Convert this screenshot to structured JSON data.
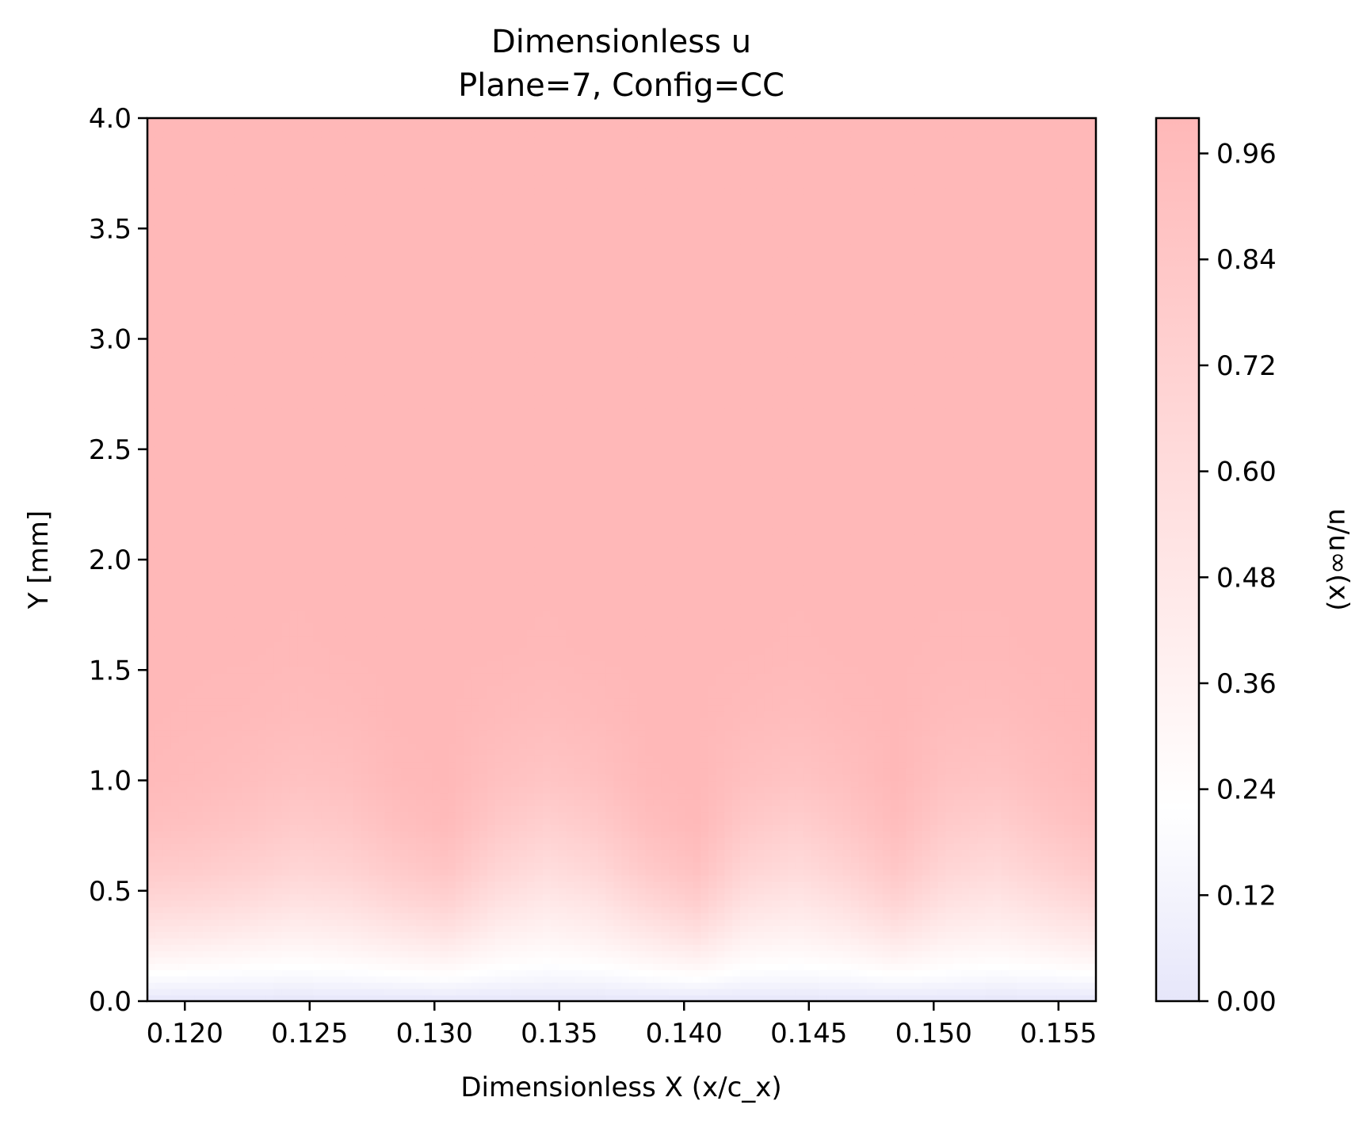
{
  "chart_data": {
    "type": "heatmap",
    "title": "Dimensionless u",
    "subtitle": "Plane=7, Config=CC",
    "xlabel": "Dimensionless X (x/c_x)",
    "ylabel": "Y [mm]",
    "colorbar_label": "u/u∞(x)",
    "xlim": [
      0.1185,
      0.1565
    ],
    "ylim": [
      0.0,
      4.0
    ],
    "clim": [
      0.0,
      1.0
    ],
    "xticks": [
      "0.120",
      "0.125",
      "0.130",
      "0.135",
      "0.140",
      "0.145",
      "0.150",
      "0.155"
    ],
    "xtick_values": [
      0.12,
      0.125,
      0.13,
      0.135,
      0.14,
      0.145,
      0.15,
      0.155
    ],
    "yticks": [
      "0.0",
      "0.5",
      "1.0",
      "1.5",
      "2.0",
      "2.5",
      "3.0",
      "3.5",
      "4.0"
    ],
    "ytick_values": [
      0.0,
      0.5,
      1.0,
      1.5,
      2.0,
      2.5,
      3.0,
      3.5,
      4.0
    ],
    "cticks": [
      "0.00",
      "0.12",
      "0.24",
      "0.36",
      "0.48",
      "0.60",
      "0.72",
      "0.84",
      "0.96"
    ],
    "ctick_values": [
      0.0,
      0.12,
      0.24,
      0.36,
      0.48,
      0.6,
      0.72,
      0.84,
      0.96
    ],
    "colormap": [
      "#e6e6fa",
      "#ffffff",
      "#ffb8b8"
    ],
    "field": {
      "description_x": "x positions (dimensionless)",
      "x": [
        0.1185,
        0.1205,
        0.1225,
        0.1245,
        0.1265,
        0.1285,
        0.1305,
        0.1325,
        0.1345,
        0.1365,
        0.1385,
        0.1405,
        0.1425,
        0.1445,
        0.1465,
        0.1485,
        0.1505,
        0.1525,
        0.1545,
        0.1565
      ],
      "y": [
        0.0,
        0.1,
        0.2,
        0.3,
        0.45,
        0.6,
        0.8,
        1.0,
        1.3,
        1.6,
        2.0,
        3.0,
        4.0
      ],
      "u": [
        [
          0.0,
          0.0,
          0.0,
          0.0,
          0.0,
          0.0,
          0.0,
          0.0,
          0.0,
          0.0,
          0.0,
          0.0,
          0.0,
          0.0,
          0.0,
          0.0,
          0.0,
          0.0,
          0.0,
          0.0
        ],
        [
          0.18,
          0.17,
          0.16,
          0.15,
          0.16,
          0.18,
          0.2,
          0.16,
          0.14,
          0.15,
          0.18,
          0.21,
          0.16,
          0.15,
          0.16,
          0.19,
          0.17,
          0.15,
          0.16,
          0.18
        ],
        [
          0.34,
          0.32,
          0.29,
          0.27,
          0.29,
          0.33,
          0.36,
          0.28,
          0.25,
          0.27,
          0.33,
          0.38,
          0.28,
          0.26,
          0.29,
          0.35,
          0.29,
          0.27,
          0.3,
          0.34
        ],
        [
          0.48,
          0.46,
          0.42,
          0.38,
          0.41,
          0.47,
          0.52,
          0.39,
          0.34,
          0.38,
          0.47,
          0.55,
          0.39,
          0.36,
          0.41,
          0.5,
          0.4,
          0.37,
          0.42,
          0.48
        ],
        [
          0.66,
          0.64,
          0.6,
          0.54,
          0.57,
          0.66,
          0.72,
          0.55,
          0.47,
          0.52,
          0.66,
          0.76,
          0.55,
          0.49,
          0.57,
          0.7,
          0.55,
          0.5,
          0.58,
          0.66
        ],
        [
          0.8,
          0.78,
          0.74,
          0.68,
          0.71,
          0.8,
          0.86,
          0.69,
          0.6,
          0.66,
          0.81,
          0.9,
          0.69,
          0.62,
          0.71,
          0.84,
          0.68,
          0.63,
          0.72,
          0.8
        ],
        [
          0.92,
          0.9,
          0.86,
          0.8,
          0.83,
          0.92,
          0.97,
          0.82,
          0.74,
          0.8,
          0.93,
          0.99,
          0.82,
          0.75,
          0.84,
          0.95,
          0.8,
          0.76,
          0.85,
          0.92
        ],
        [
          0.98,
          0.96,
          0.93,
          0.89,
          0.91,
          0.98,
          1.0,
          0.91,
          0.86,
          0.9,
          0.99,
          1.0,
          0.91,
          0.87,
          0.92,
          1.0,
          0.89,
          0.87,
          0.93,
          0.98
        ],
        [
          1.0,
          0.99,
          0.98,
          0.96,
          0.97,
          1.0,
          1.0,
          0.97,
          0.95,
          0.97,
          1.0,
          1.0,
          0.97,
          0.95,
          0.98,
          1.0,
          0.96,
          0.95,
          0.98,
          1.0
        ],
        [
          1.0,
          1.0,
          1.0,
          0.99,
          1.0,
          1.0,
          1.0,
          1.0,
          0.99,
          1.0,
          1.0,
          1.0,
          1.0,
          0.99,
          1.0,
          1.0,
          0.99,
          0.99,
          1.0,
          1.0
        ],
        [
          1.0,
          1.0,
          1.0,
          1.0,
          1.0,
          1.0,
          1.0,
          1.0,
          1.0,
          1.0,
          1.0,
          1.0,
          1.0,
          1.0,
          1.0,
          1.0,
          1.0,
          1.0,
          1.0,
          1.0
        ],
        [
          1.0,
          1.0,
          1.0,
          1.0,
          1.0,
          1.0,
          1.0,
          1.0,
          1.0,
          1.0,
          1.0,
          1.0,
          1.0,
          1.0,
          1.0,
          1.0,
          1.0,
          1.0,
          1.0,
          1.0
        ],
        [
          1.0,
          1.0,
          1.0,
          1.0,
          1.0,
          1.0,
          1.0,
          1.0,
          1.0,
          1.0,
          1.0,
          1.0,
          1.0,
          1.0,
          1.0,
          1.0,
          1.0,
          1.0,
          1.0,
          1.0
        ]
      ]
    },
    "grid": false,
    "legend": "colorbar-right"
  }
}
